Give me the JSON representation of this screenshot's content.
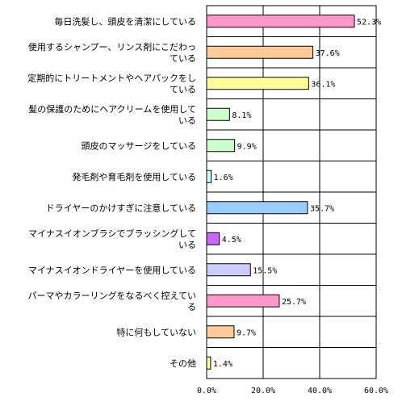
{
  "chart_data": {
    "type": "bar",
    "orientation": "horizontal",
    "categories": [
      [
        "毎日洗髪し、頭皮を清潔にしている"
      ],
      [
        "使用するシャンプー、リンス剤にこだわっ",
        "ている"
      ],
      [
        "定期的にトリートメントやヘアパックをし",
        "ている"
      ],
      [
        "髪の保護のためにヘアクリームを使用して",
        "いる"
      ],
      [
        "頭皮のマッサージをしている"
      ],
      [
        "発毛剤や育毛剤を使用している"
      ],
      [
        "ドライヤーのかけすぎに注意している"
      ],
      [
        "マイナスイオンブラシでブラッシングして",
        "いる"
      ],
      [
        "マイナスイオンドライヤーを使用している"
      ],
      [
        "パーマやカラーリングをなるべく控えてい",
        "る"
      ],
      [
        "特に何もしていない"
      ],
      [
        "その他"
      ]
    ],
    "values": [
      52.3,
      37.6,
      36.1,
      8.1,
      9.9,
      1.6,
      35.7,
      4.5,
      15.5,
      25.7,
      9.7,
      1.4
    ],
    "value_labels": [
      "52.3%",
      "37.6%",
      "36.1%",
      "8.1%",
      "9.9%",
      "1.6%",
      "35.7%",
      "4.5%",
      "15.5%",
      "25.7%",
      "9.7%",
      "1.4%"
    ],
    "colors": [
      "#ff99cc",
      "#ffcc99",
      "#ffff99",
      "#ccffcc",
      "#ccffcc",
      "#ccffff",
      "#99ccff",
      "#cc66ff",
      "#ccccff",
      "#ff99cc",
      "#ffcc99",
      "#ffff99"
    ],
    "xlim": [
      0,
      60
    ],
    "ticks": [
      0,
      20,
      40,
      60
    ],
    "tick_labels": [
      "0.0%",
      "20.0%",
      "40.0%",
      "60.0%"
    ],
    "grid": true
  }
}
